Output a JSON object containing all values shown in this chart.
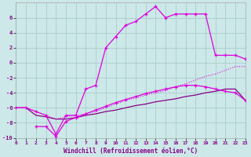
{
  "background_color": "#cce8e8",
  "grid_color": "#aacccc",
  "line_color_bright": "#dd00dd",
  "line_color_dark": "#880088",
  "xlim": [
    0,
    23
  ],
  "ylim": [
    -10,
    8
  ],
  "xlabel": "Windchill (Refroidissement éolien,°C)",
  "xticks": [
    0,
    1,
    2,
    3,
    4,
    5,
    6,
    7,
    8,
    9,
    10,
    11,
    12,
    13,
    14,
    15,
    16,
    17,
    18,
    19,
    20,
    21,
    22,
    23
  ],
  "yticks": [
    -10,
    -8,
    -6,
    -4,
    -2,
    0,
    2,
    4,
    6
  ],
  "line1_x": [
    0,
    1,
    2,
    3,
    4,
    5,
    6,
    7,
    8,
    9,
    10,
    11,
    12,
    13,
    14,
    15,
    16,
    17,
    18,
    19,
    20,
    21,
    22,
    23
  ],
  "line1_y": [
    -6,
    -6,
    -6.5,
    -7,
    -9.5,
    -7,
    -7,
    -3.5,
    -3,
    2,
    3.5,
    5,
    5.5,
    6.5,
    7.5,
    6,
    6.5,
    6.5,
    6.5,
    6.5,
    1,
    1,
    1,
    0.5
  ],
  "line2_x": [
    0,
    1,
    2,
    3,
    4,
    5,
    6,
    7,
    8,
    9,
    10,
    11,
    12,
    13,
    14,
    15,
    16,
    17,
    18,
    19,
    20,
    21,
    22,
    23
  ],
  "line2_y": [
    -6,
    -6,
    -6.5,
    -7,
    -7.5,
    -7.2,
    -7,
    -6.8,
    -6.5,
    -6,
    -5.5,
    -5,
    -4.7,
    -4.3,
    -4,
    -3.7,
    -3.2,
    -2.8,
    -2.3,
    -1.8,
    -1.5,
    -1,
    -0.5,
    -0.5
  ],
  "line3_x": [
    0,
    1,
    2,
    3,
    4,
    5,
    6,
    7,
    8,
    9,
    10,
    11,
    12,
    13,
    14,
    15,
    16,
    17,
    18,
    19,
    20,
    21,
    22,
    23
  ],
  "line3_y": [
    -6,
    -6,
    -7,
    -7.2,
    -7.5,
    -7.5,
    -7.3,
    -7,
    -6.8,
    -6.5,
    -6.3,
    -6.0,
    -5.7,
    -5.5,
    -5.2,
    -5.0,
    -4.8,
    -4.5,
    -4.3,
    -4.0,
    -3.8,
    -3.5,
    -3.5,
    -5.0
  ],
  "line4_x": [
    2,
    3,
    4,
    5,
    6,
    7,
    8,
    9,
    10,
    11,
    12,
    13,
    14,
    15,
    16,
    17,
    18,
    19,
    20,
    21,
    22,
    23
  ],
  "line4_y": [
    -8.5,
    -8.5,
    -9.8,
    -7.8,
    -7.3,
    -6.8,
    -6.3,
    -5.8,
    -5.3,
    -4.9,
    -4.5,
    -4.1,
    -3.8,
    -3.5,
    -3.2,
    -3.0,
    -3.0,
    -3.2,
    -3.5,
    -3.8,
    -4.0,
    -5.0
  ]
}
